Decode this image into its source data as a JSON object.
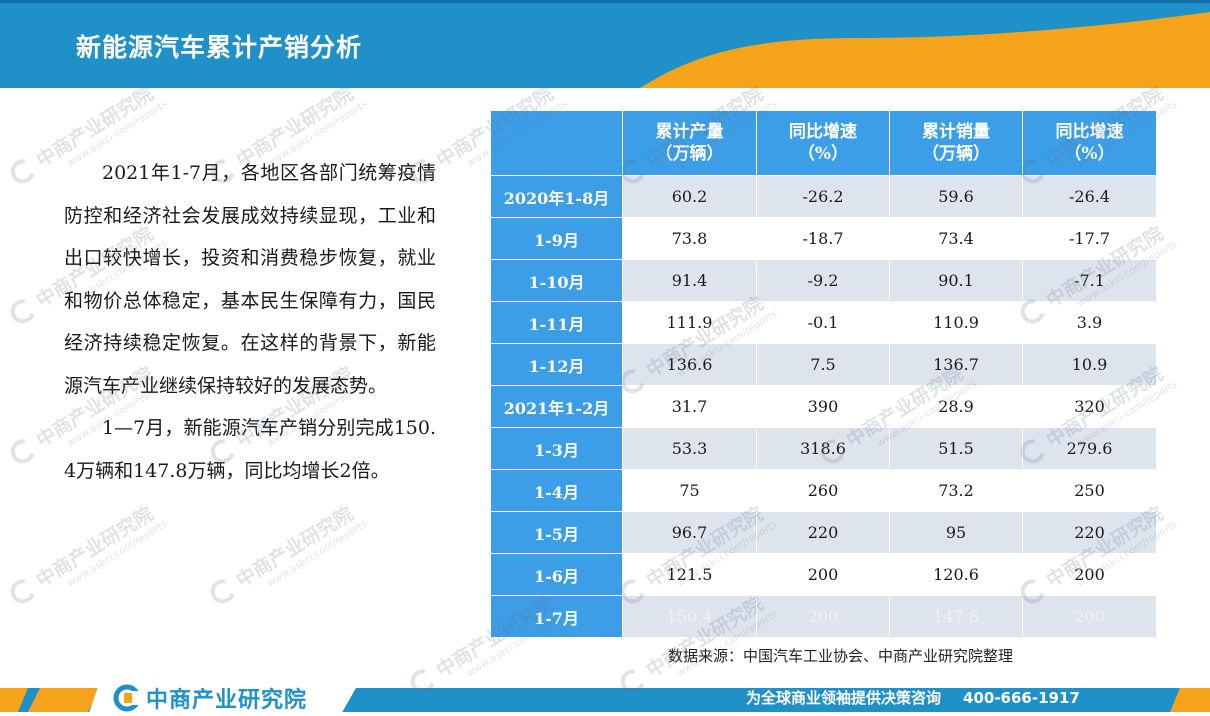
{
  "header": {
    "title": "新能源汽车累计产销分析",
    "colors": {
      "band": "#1f90c8",
      "accent": "#f5a31a"
    }
  },
  "intro": {
    "paragraphs": [
      "2021年1-7月，各地区各部门统筹疫情防控和经济社会发展成效持续显现，工业和出口较快增长，投资和消费稳步恢复，就业和物价总体稳定，基本民生保障有力，国民经济持续稳定恢复。在这样的背景下，新能源汽车产业继续保持较好的发展态势。",
      "1—7月，新能源汽车产销分别完成150.4万辆和147.8万辆，同比均增长2倍。"
    ]
  },
  "table": {
    "headers": [
      {
        "line1": "累计产量",
        "line2": "（万辆）"
      },
      {
        "line1": "同比增速",
        "line2": "（%）"
      },
      {
        "line1": "累计销量",
        "line2": "（万辆）"
      },
      {
        "line1": "同比增速",
        "line2": "（%）"
      }
    ],
    "rows": [
      {
        "label": "2020年1-8月",
        "cells": [
          "60.2",
          "-26.2",
          "59.6",
          "-26.4"
        ]
      },
      {
        "label": "1-9月",
        "cells": [
          "73.8",
          "-18.7",
          "73.4",
          "-17.7"
        ]
      },
      {
        "label": "1-10月",
        "cells": [
          "91.4",
          "-9.2",
          "90.1",
          "-7.1"
        ]
      },
      {
        "label": "1-11月",
        "cells": [
          "111.9",
          "-0.1",
          "110.9",
          "3.9"
        ]
      },
      {
        "label": "1-12月",
        "cells": [
          "136.6",
          "7.5",
          "136.7",
          "10.9"
        ]
      },
      {
        "label": "2021年1-2月",
        "cells": [
          "31.7",
          "390",
          "28.9",
          "320"
        ]
      },
      {
        "label": "1-3月",
        "cells": [
          "53.3",
          "318.6",
          "51.5",
          "279.6"
        ]
      },
      {
        "label": "1-4月",
        "cells": [
          "75",
          "260",
          "73.2",
          "250"
        ]
      },
      {
        "label": "1-5月",
        "cells": [
          "96.7",
          "220",
          "95",
          "220"
        ]
      },
      {
        "label": "1-6月",
        "cells": [
          "121.5",
          "200",
          "120.6",
          "200"
        ]
      },
      {
        "label": "1-7月",
        "cells": [
          "150.4",
          "200",
          "147.8",
          "200"
        ]
      }
    ],
    "colors": {
      "header_bg": "#3d9ee8",
      "stripe_bg": "#dde4ee"
    }
  },
  "source": "数据来源：中国汽车工业协会、中商产业研究院整理",
  "footer": {
    "logo_name": "中商产业研究院",
    "slogan": "为全球商业领袖提供决策咨询",
    "phone": "400-666-1917"
  },
  "watermark": {
    "name": "中商产业研究院",
    "url": "www.askci.com/reports"
  }
}
